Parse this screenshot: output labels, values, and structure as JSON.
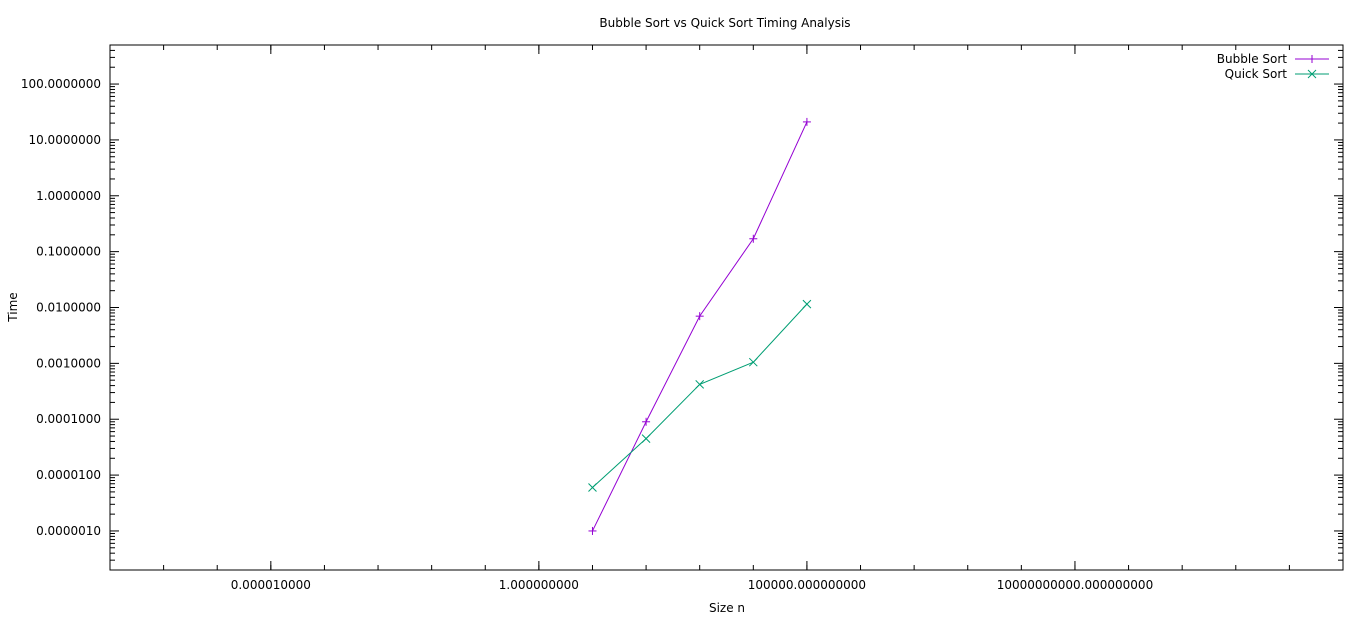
{
  "chart_data": {
    "type": "line",
    "title": "Bubble Sort vs Quick Sort Timing Analysis",
    "xlabel": "Size n",
    "ylabel": "Time",
    "x_scale": "log",
    "y_scale": "log",
    "xlim": [
      1e-08,
      1000000000000000
    ],
    "ylim": [
      2e-07,
      500
    ],
    "x_ticks": [
      {
        "value": 1e-05,
        "label": "0.000010000"
      },
      {
        "value": 1,
        "label": "1.000000000"
      },
      {
        "value": 100000,
        "label": "100000.000000000"
      },
      {
        "value": 10000000000,
        "label": "10000000000.000000000"
      }
    ],
    "y_ticks": [
      {
        "value": 1e-06,
        "label": "0.0000010"
      },
      {
        "value": 1e-05,
        "label": "0.0000100"
      },
      {
        "value": 0.0001,
        "label": "0.0001000"
      },
      {
        "value": 0.001,
        "label": "0.0010000"
      },
      {
        "value": 0.01,
        "label": "0.0100000"
      },
      {
        "value": 0.1,
        "label": "0.1000000"
      },
      {
        "value": 1,
        "label": "1.0000000"
      },
      {
        "value": 10,
        "label": "10.0000000"
      },
      {
        "value": 100,
        "label": "100.0000000"
      }
    ],
    "legend_position": "top-right",
    "grid": false,
    "series": [
      {
        "name": "Bubble Sort",
        "color": "#9400d3",
        "marker": "plus",
        "x": [
          10,
          100,
          1000,
          10000,
          100000
        ],
        "y": [
          1e-06,
          9e-05,
          0.007,
          0.17,
          21
        ]
      },
      {
        "name": "Quick Sort",
        "color": "#009e73",
        "marker": "cross",
        "x": [
          10,
          100,
          1000,
          10000,
          100000
        ],
        "y": [
          6e-06,
          4.5e-05,
          0.00042,
          0.00105,
          0.0115
        ]
      }
    ]
  }
}
